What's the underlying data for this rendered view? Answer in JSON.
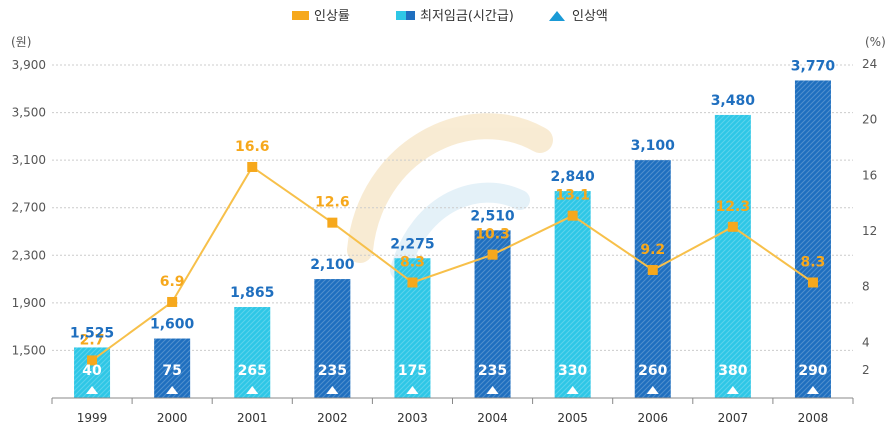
{
  "legend": {
    "rate_label": "인상률",
    "wage_label": "최저임금(시간급)",
    "increase_label": "인상액"
  },
  "axes": {
    "left_unit": "(원)",
    "right_unit": "(%)"
  },
  "colors": {
    "rate": "#f6a81c",
    "bar_light": "#2ec7e6",
    "bar_dark": "#1f6fbf",
    "value_label": "#1f6fbf",
    "increase_text": "#ffffff",
    "grid": "#cccccc"
  },
  "chart_data": {
    "type": "bar",
    "title": "",
    "categories": [
      "1999",
      "2000",
      "2001",
      "2002",
      "2003",
      "2004",
      "2005",
      "2006",
      "2007",
      "2008"
    ],
    "series": [
      {
        "name": "최저임금(시간급)",
        "axis": "left",
        "type": "bar",
        "values": [
          1525,
          1600,
          1865,
          2100,
          2275,
          2510,
          2840,
          3100,
          3480,
          3770
        ],
        "labels": [
          "1,525",
          "1,600",
          "1,865",
          "2,100",
          "2,275",
          "2,510",
          "2,840",
          "3,100",
          "3,480",
          "3,770"
        ],
        "shade": [
          "light",
          "dark",
          "light",
          "dark",
          "light",
          "dark",
          "light",
          "dark",
          "light",
          "dark"
        ]
      },
      {
        "name": "인상률",
        "axis": "right",
        "type": "line",
        "values": [
          2.7,
          6.9,
          16.6,
          12.6,
          8.3,
          10.3,
          13.1,
          9.2,
          12.3,
          8.3
        ],
        "labels": [
          "2.7",
          "6.9",
          "16.6",
          "12.6",
          "8.3",
          "10.3",
          "13.1",
          "9.2",
          "12.3",
          "8.3"
        ]
      },
      {
        "name": "인상액",
        "type": "marker",
        "values": [
          40,
          75,
          265,
          235,
          175,
          235,
          330,
          260,
          380,
          290
        ],
        "labels": [
          "40",
          "75",
          "265",
          "235",
          "175",
          "235",
          "330",
          "260",
          "380",
          "290"
        ]
      }
    ],
    "y_left": {
      "range": [
        1100,
        3900
      ],
      "ticks": [
        1500,
        1900,
        2300,
        2700,
        3100,
        3500,
        3900
      ],
      "tick_labels": [
        "1,500",
        "1,900",
        "2,300",
        "2,700",
        "3,100",
        "3,500",
        "3,900"
      ]
    },
    "y_right": {
      "range": [
        0,
        24
      ],
      "ticks": [
        2,
        4,
        8,
        12,
        16,
        20,
        24
      ],
      "tick_labels": [
        "2",
        "4",
        "8",
        "12",
        "16",
        "20",
        "24"
      ]
    },
    "grid": true,
    "legend_position": "top-center"
  }
}
